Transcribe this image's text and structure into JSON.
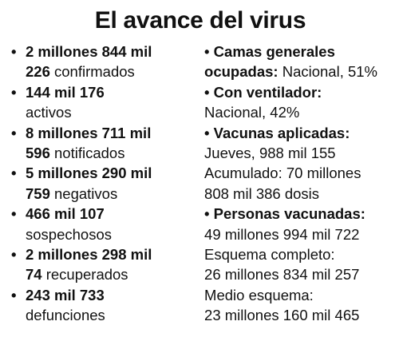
{
  "title": "El avance del virus",
  "left": [
    {
      "l1_bold": "2 millones 844 mil",
      "l2_bold": "226",
      "l2_rest": " confirmados"
    },
    {
      "l1_bold": "144 mil 176",
      "l2_bold": "",
      "l2_rest": "activos"
    },
    {
      "l1_bold": "8 millones 711 mil",
      "l2_bold": "596",
      "l2_rest": " notificados"
    },
    {
      "l1_bold": "5 millones 290 mil",
      "l2_bold": "759",
      "l2_rest": " negativos"
    },
    {
      "l1_bold": "466 mil 107",
      "l2_bold": "",
      "l2_rest": "sospechosos"
    },
    {
      "l1_bold": "2 millones 298 mil",
      "l2_bold": "74",
      "l2_rest": " recuperados"
    },
    {
      "l1_bold": "243 mil 733",
      "l2_bold": "",
      "l2_rest": "defunciones"
    }
  ],
  "right": {
    "camas": {
      "bullet": "•",
      "l1": "Camas generales",
      "l2_bold": "ocupadas:",
      "l2_rest": " Nacional, 51%"
    },
    "ventilador": {
      "bullet": "•",
      "l1": "Con ventilador:",
      "l2": "Nacional, 42%"
    },
    "vacunas": {
      "bullet": "•",
      "l1": "Vacunas aplicadas:",
      "l2": "Jueves, 988 mil 155",
      "l3": "Acumulado: 70 millones",
      "l4": "808 mil 386 dosis"
    },
    "personas": {
      "bullet": "•",
      "l1": "Personas vacunadas:",
      "l2": "49 millones 994 mil 722",
      "l3": "Esquema completo:",
      "l4": "26 millones 834 mil 257",
      "l5": "Medio esquema:",
      "l6": "23 millones 160 mil 465"
    }
  },
  "bullet_symbol": "•"
}
